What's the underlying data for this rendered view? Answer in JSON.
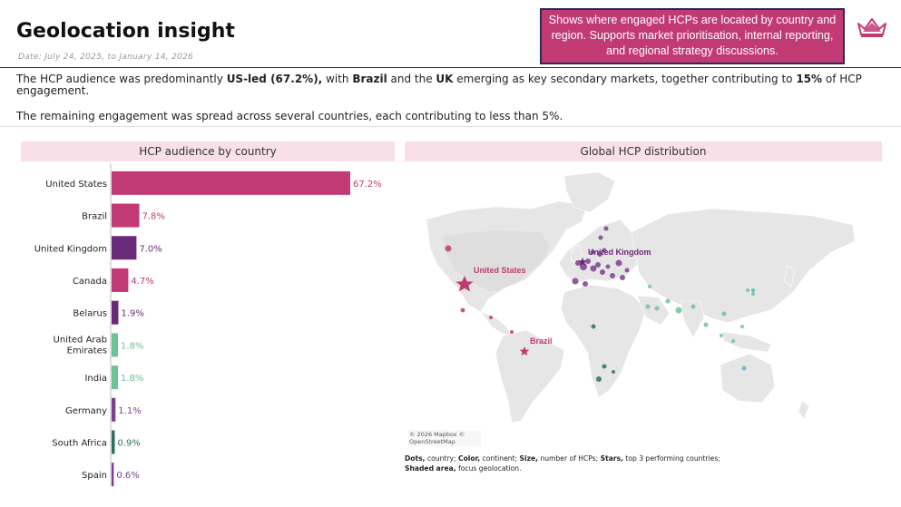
{
  "header": {
    "title": "Geolocation insight",
    "date": "Date: July 24, 2025, to January 14, 2026",
    "callout": "Shows where engaged HCPs are located by country and region. Supports market prioritisation, internal reporting, and regional strategy discussions."
  },
  "summary": {
    "p1_a": "The HCP audience was predominantly ",
    "p1_b": "US-led (67.2%),",
    "p1_c": " with ",
    "p1_d": "Brazil",
    "p1_e": " and the ",
    "p1_f": "UK",
    "p1_g": " emerging as key secondary markets, together contributing to ",
    "p1_h": "15%",
    "p1_i": " of HCP engagement.",
    "p2": "The remaining engagement was spread across several countries, each contributing to less than 5%."
  },
  "colors": {
    "pink": "#c23a74",
    "purple": "#6a2a7a",
    "purple_light": "#7e3f8e",
    "green_light": "#6cc396",
    "green_dark": "#2f6f62",
    "teal": "#55b8c8",
    "land": "#e8e8e8",
    "header_bg": "#f8dfe8"
  },
  "chart_data": [
    {
      "type": "bar",
      "orientation": "horizontal",
      "title": "HCP audience by country",
      "categories": [
        "United States",
        "Brazil",
        "United Kingdom",
        "Canada",
        "Belarus",
        "United Arab Emirates",
        "India",
        "Germany",
        "South Africa",
        "Spain"
      ],
      "values": [
        67.2,
        7.8,
        7.0,
        4.7,
        1.9,
        1.8,
        1.8,
        1.1,
        0.9,
        0.6
      ],
      "labels": [
        "67.2%",
        "7.8%",
        "7.0%",
        "4.7%",
        "1.9%",
        "1.8%",
        "1.8%",
        "1.1%",
        "0.9%",
        "0.6%"
      ],
      "bar_colors": [
        "#c23a74",
        "#c23a74",
        "#6a2a7a",
        "#c23a74",
        "#6a2a7a",
        "#6cc396",
        "#6cc396",
        "#7e3f8e",
        "#2f6f62",
        "#7e3f8e"
      ],
      "xlim": [
        0,
        67.2
      ]
    },
    {
      "type": "scatter",
      "title": "Global HCP distribution",
      "star_labels": [
        "United Kingdom",
        "United States",
        "Brazil"
      ],
      "attribution": "© 2026 Mapbox © OpenStreetMap",
      "legend": {
        "dots_b": "Dots,",
        "dots_t": " country; ",
        "color_b": "Color,",
        "color_t": " continent; ",
        "size_b": "Size,",
        "size_t": " number of HCPs; ",
        "stars_b": "Stars,",
        "stars_t": " top 3 performing countries;",
        "shaded_b": "Shaded area,",
        "shaded_t": " focus geolocation."
      }
    }
  ]
}
